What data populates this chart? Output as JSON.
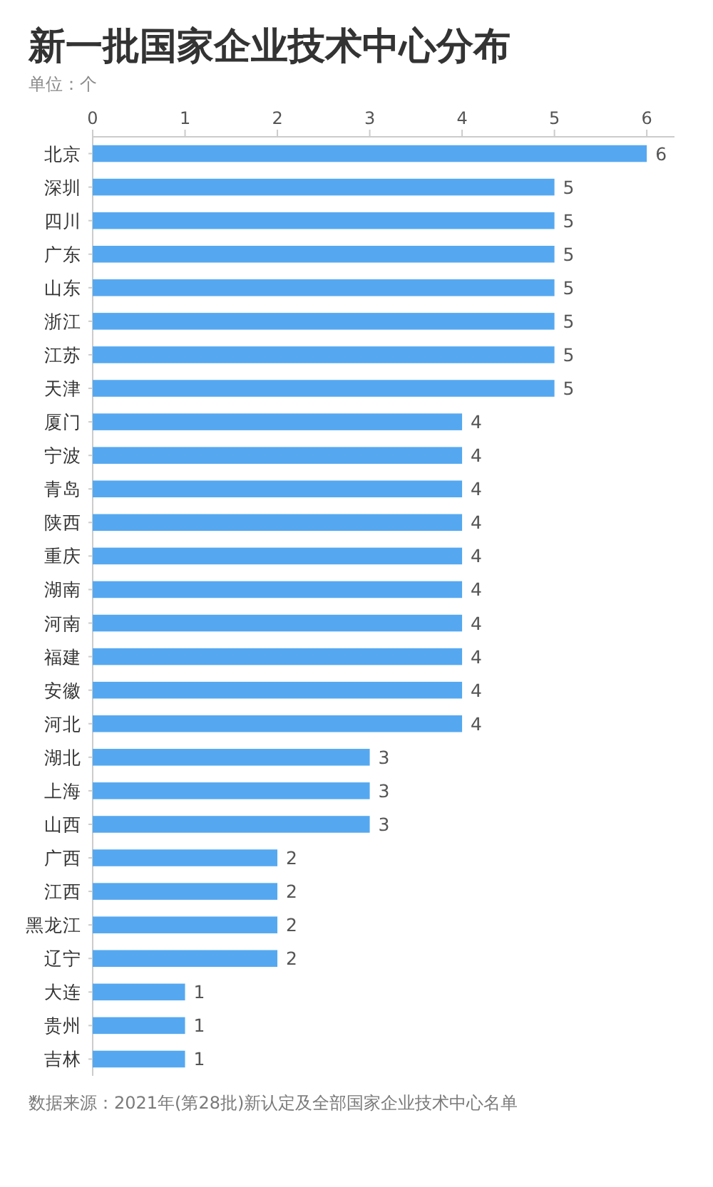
{
  "chart_data": {
    "type": "bar",
    "orientation": "horizontal",
    "title": "新一批国家企业技术中心分布",
    "subtitle": "单位：个",
    "categories": [
      "北京",
      "深圳",
      "四川",
      "广东",
      "山东",
      "浙江",
      "江苏",
      "天津",
      "厦门",
      "宁波",
      "青岛",
      "陕西",
      "重庆",
      "湖南",
      "河南",
      "福建",
      "安徽",
      "河北",
      "湖北",
      "上海",
      "山西",
      "广西",
      "江西",
      "黑龙江",
      "辽宁",
      "大连",
      "贵州",
      "吉林"
    ],
    "values": [
      6,
      5,
      5,
      5,
      5,
      5,
      5,
      5,
      4,
      4,
      4,
      4,
      4,
      4,
      4,
      4,
      4,
      4,
      3,
      3,
      3,
      2,
      2,
      2,
      2,
      1,
      1,
      1
    ],
    "color": "#55a8f0",
    "xlim": [
      0,
      6.3
    ],
    "xticks": [
      0,
      1,
      2,
      3,
      4,
      5,
      6
    ],
    "data_labels": true,
    "annotations": [
      "数据来源：2021年(第28批)新认定及全部国家企业技术中心名单"
    ]
  }
}
